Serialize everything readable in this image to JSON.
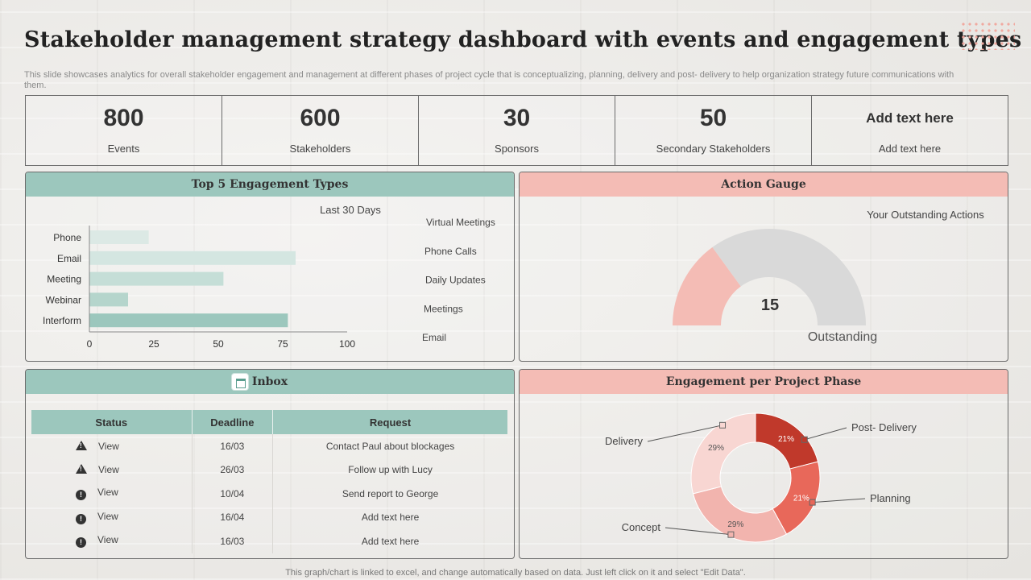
{
  "title": "Stakeholder management strategy dashboard with events and engagement types",
  "subtitle": "This slide showcases analytics for overall stakeholder engagement and management at different phases of project cycle that is conceptualizing, planning, delivery and post- delivery to help organization strategy future communications with them.",
  "kpis": [
    {
      "value": "800",
      "label": "Events"
    },
    {
      "value": "600",
      "label": "Stakeholders"
    },
    {
      "value": "30",
      "label": "Sponsors"
    },
    {
      "value": "50",
      "label": "Secondary Stakeholders"
    },
    {
      "value": "Add text here",
      "label": "Add text here"
    }
  ],
  "engagement_panel": {
    "header": "Top 5 Engagement Types",
    "period": "Last 30 Days",
    "side_list": [
      "Virtual Meetings",
      "Phone Calls",
      "Daily Updates",
      "Meetings",
      "Email"
    ]
  },
  "gauge_panel": {
    "header": "Action Gauge",
    "caption": "Your Outstanding Actions",
    "value_label": "15",
    "outstanding_label": "Outstanding"
  },
  "inbox_panel": {
    "header": "Inbox",
    "columns": [
      "Status",
      "Deadline",
      "Request"
    ],
    "rows": [
      {
        "icon": "warning-icon",
        "status": "View",
        "deadline": "16/03",
        "request": "Contact Paul about blockages"
      },
      {
        "icon": "warning-icon",
        "status": "View",
        "deadline": "26/03",
        "request": "Follow up with Lucy"
      },
      {
        "icon": "alert-circle-icon",
        "status": "View",
        "deadline": "10/04",
        "request": "Send report to George"
      },
      {
        "icon": "alert-circle-icon",
        "status": "View",
        "deadline": "16/04",
        "request": "Add text here"
      },
      {
        "icon": "alert-circle-icon",
        "status": "View",
        "deadline": "16/03",
        "request": "Add text here"
      }
    ]
  },
  "phase_panel": {
    "header": "Engagement per Project Phase"
  },
  "footer": "This graph/chart is linked to excel, and change automatically based on data. Just left click on it and select \"Edit Data\".",
  "colors": {
    "teal_header": "#9cc7bd",
    "pink_header": "#f4bcb5",
    "gauge_filled": "#f4bcb5",
    "gauge_remaining": "#d9d9d9"
  },
  "chart_data": [
    {
      "type": "bar",
      "orientation": "horizontal",
      "categories": [
        "Phone",
        "Email",
        "Meeting",
        "Webinar",
        "Interform"
      ],
      "values": [
        23,
        80,
        52,
        15,
        77
      ],
      "colors": [
        "#dce9e5",
        "#d4e6e1",
        "#c5ded7",
        "#b5d5cc",
        "#9cc7bd"
      ],
      "xlim": [
        0,
        100
      ],
      "xticks": [
        0,
        25,
        50,
        75,
        100
      ],
      "grid": false
    },
    {
      "type": "gauge",
      "value": 15,
      "filled_fraction": 0.3
    },
    {
      "type": "pie",
      "donut": true,
      "slices": [
        {
          "label": "Post- Delivery",
          "value": 21,
          "pct_label": "21%",
          "color": "#c0392b"
        },
        {
          "label": "Planning",
          "value": 21,
          "pct_label": "21%",
          "color": "#e8685a"
        },
        {
          "label": "Concept",
          "value": 29,
          "pct_label": "29%",
          "color": "#f2b4ae"
        },
        {
          "label": "Delivery",
          "value": 29,
          "pct_label": "29%",
          "color": "#f8d6d2"
        }
      ]
    }
  ]
}
